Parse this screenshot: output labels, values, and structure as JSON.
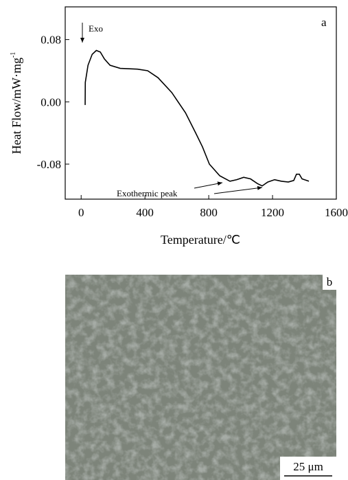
{
  "chart_data": {
    "type": "line",
    "panel_label": "a",
    "xlabel": "Temperature/℃",
    "ylabel": "Heat Flow/mW·mg",
    "ylabel_sup": "-1",
    "annotations": [
      "Exo",
      "Exothermic peak"
    ],
    "x": [
      25,
      26,
      43,
      69,
      95,
      120,
      146,
      181,
      245,
      353,
      417,
      482,
      568,
      654,
      718,
      761,
      804,
      869,
      933,
      976,
      1019,
      1062,
      1105,
      1135,
      1170,
      1213,
      1256,
      1299,
      1333,
      1350,
      1368,
      1385,
      1428
    ],
    "series": [
      {
        "color": "#000000",
        "values": [
          -0.004,
          0.025,
          0.047,
          0.061,
          0.066,
          0.064,
          0.055,
          0.047,
          0.043,
          0.042,
          0.04,
          0.031,
          0.012,
          -0.014,
          -0.04,
          -0.058,
          -0.08,
          -0.095,
          -0.102,
          -0.1,
          -0.097,
          -0.099,
          -0.105,
          -0.108,
          -0.103,
          -0.1,
          -0.102,
          -0.103,
          -0.101,
          -0.093,
          -0.093,
          -0.099,
          -0.102
        ]
      }
    ],
    "xlim": [
      -100,
      1600
    ],
    "ylim": [
      -0.125,
      0.122
    ],
    "xticks": [
      0,
      400,
      800,
      1200,
      1600
    ],
    "yticks": [
      -0.08,
      {
        "value": 0,
        "label": "0.00"
      },
      0.08
    ]
  },
  "image": {
    "label": "b",
    "scale_bar": "25 μm"
  }
}
